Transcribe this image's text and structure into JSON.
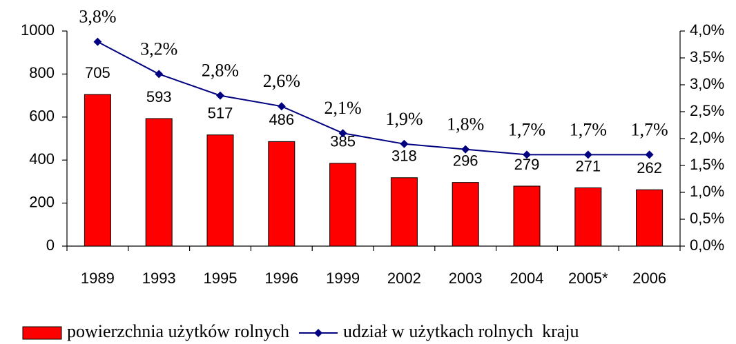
{
  "chart_data": {
    "type": "combo",
    "categories": [
      "1989",
      "1993",
      "1995",
      "1996",
      "1999",
      "2002",
      "2003",
      "2004",
      "2005*",
      "2006"
    ],
    "series": [
      {
        "name": "powierzchnia użytków rolnych",
        "type": "bar",
        "color": "#ff0000",
        "values": [
          705,
          593,
          517,
          486,
          385,
          318,
          296,
          279,
          271,
          262
        ]
      },
      {
        "name": "udział w użytkach rolnych  kraju",
        "type": "line",
        "axis": "y2",
        "color": "#000080",
        "values": [
          3.8,
          3.2,
          2.8,
          2.6,
          2.1,
          1.9,
          1.8,
          1.7,
          1.7,
          1.7
        ],
        "value_labels": [
          "3,8%",
          "3,2%",
          "2,8%",
          "2,6%",
          "2,1%",
          "1,9%",
          "1,8%",
          "1,7%",
          "1,7%",
          "1,7%"
        ]
      }
    ],
    "ylim": [
      0,
      1000
    ],
    "yticks": [
      0,
      200,
      400,
      600,
      800,
      1000
    ],
    "y2lim": [
      0,
      4
    ],
    "y2ticks": [
      {
        "value": 0,
        "label": "0,0%"
      },
      {
        "value": 0.5,
        "label": "0,5%"
      },
      {
        "value": 1,
        "label": "1,0%"
      },
      {
        "value": 1.5,
        "label": "1,5%"
      },
      {
        "value": 2,
        "label": "2,0%"
      },
      {
        "value": 2.5,
        "label": "2,5%"
      },
      {
        "value": 3,
        "label": "3,0%"
      },
      {
        "value": 3.5,
        "label": "3,5%"
      },
      {
        "value": 4,
        "label": "4,0%"
      }
    ],
    "grid": false,
    "legend": "bottom"
  }
}
